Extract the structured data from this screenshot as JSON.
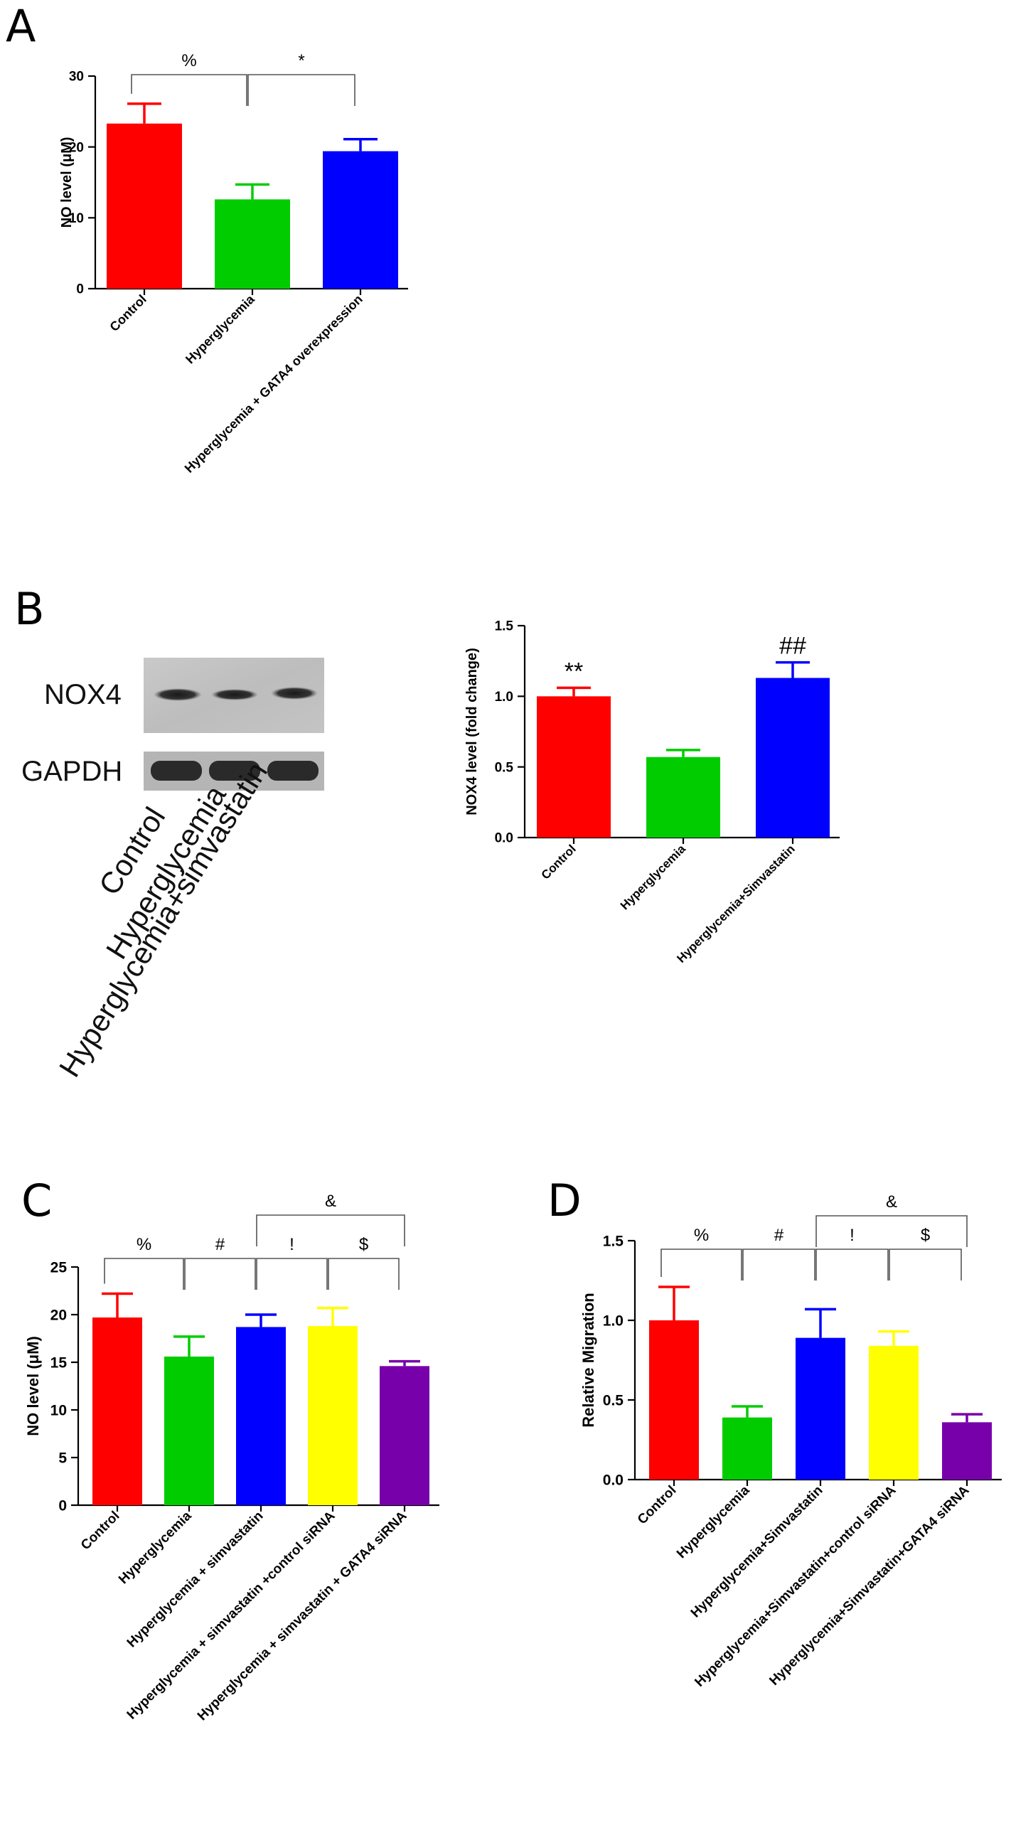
{
  "panels": {
    "A": "A",
    "B": "B",
    "C": "C",
    "D": "D"
  },
  "blot": {
    "rows": [
      "NOX4",
      "GAPDH"
    ],
    "lanes": [
      "Control",
      "Hyperglycemia",
      "Hyperglycemia+simvastatin"
    ]
  },
  "chart_data": [
    {
      "id": "A",
      "type": "bar",
      "ylabel": "NO level (μM)",
      "ylim": [
        0,
        30
      ],
      "yticks": [
        "0",
        "10",
        "20",
        "30"
      ],
      "categories": [
        "Control",
        "Hyperglycemia",
        "Hyperglycemia + GATA4 overexpression"
      ],
      "values": [
        23.3,
        12.6,
        19.4
      ],
      "errors": [
        2.8,
        2.1,
        1.7
      ],
      "colors": [
        "#ff0000",
        "#00cc00",
        "#0000ff"
      ],
      "annotations": [
        {
          "text": "%",
          "from": 0,
          "to": 1
        },
        {
          "text": "*",
          "from": 1,
          "to": 2
        }
      ]
    },
    {
      "id": "B",
      "type": "bar",
      "ylabel": "NOX4 level (fold change)",
      "ylim": [
        0,
        1.5
      ],
      "yticks": [
        "0.0",
        "0.5",
        "1.0",
        "1.5"
      ],
      "categories": [
        "Control",
        "Hyperglycemia",
        "Hyperglycemia+Simvastatin"
      ],
      "values": [
        1.0,
        0.57,
        1.13
      ],
      "errors": [
        0.06,
        0.05,
        0.11
      ],
      "colors": [
        "#ff0000",
        "#00cc00",
        "#0000ff"
      ],
      "bar_labels": [
        "**",
        "",
        "##"
      ]
    },
    {
      "id": "C",
      "type": "bar",
      "ylabel": "NO level (μM)",
      "ylim": [
        0,
        25
      ],
      "yticks": [
        "0",
        "5",
        "10",
        "15",
        "20",
        "25"
      ],
      "categories": [
        "Control",
        "Hyperglycemia",
        "Hyperglycemia + simvastatin",
        "Hyperglycemia + simvastatin +control siRNA",
        "Hyperglycemia + simvastatin + GATA4 siRNA"
      ],
      "values": [
        19.7,
        15.6,
        18.7,
        18.8,
        14.6
      ],
      "errors": [
        2.5,
        2.1,
        1.3,
        1.9,
        0.5
      ],
      "colors": [
        "#ff0000",
        "#00cc00",
        "#0000ff",
        "#ffff00",
        "#7700aa"
      ],
      "annotations": [
        {
          "text": "%",
          "from": 0,
          "to": 1
        },
        {
          "text": "#",
          "from": 1,
          "to": 2
        },
        {
          "text": "!",
          "from": 2,
          "to": 3
        },
        {
          "text": "$",
          "from": 3,
          "to": 4
        },
        {
          "text": "&",
          "from": 2,
          "to": 4
        }
      ]
    },
    {
      "id": "D",
      "type": "bar",
      "ylabel": "Relative Migration",
      "ylim": [
        0,
        1.5
      ],
      "yticks": [
        "0.0",
        "0.5",
        "1.0",
        "1.5"
      ],
      "categories": [
        "Control",
        "Hyperglycemia",
        "Hyperglycemia+Simvastatin",
        "Hyperglycemia+Simvastatin+control siRNA",
        "Hyperglycemia+Simvastatin+GATA4 siRNA"
      ],
      "values": [
        1.0,
        0.39,
        0.89,
        0.84,
        0.36
      ],
      "errors": [
        0.21,
        0.07,
        0.18,
        0.09,
        0.05
      ],
      "colors": [
        "#ff0000",
        "#00cc00",
        "#0000ff",
        "#ffff00",
        "#7700aa"
      ],
      "annotations": [
        {
          "text": "%",
          "from": 0,
          "to": 1
        },
        {
          "text": "#",
          "from": 1,
          "to": 2
        },
        {
          "text": "!",
          "from": 2,
          "to": 3
        },
        {
          "text": "$",
          "from": 3,
          "to": 4
        },
        {
          "text": "&",
          "from": 2,
          "to": 4
        }
      ]
    }
  ]
}
